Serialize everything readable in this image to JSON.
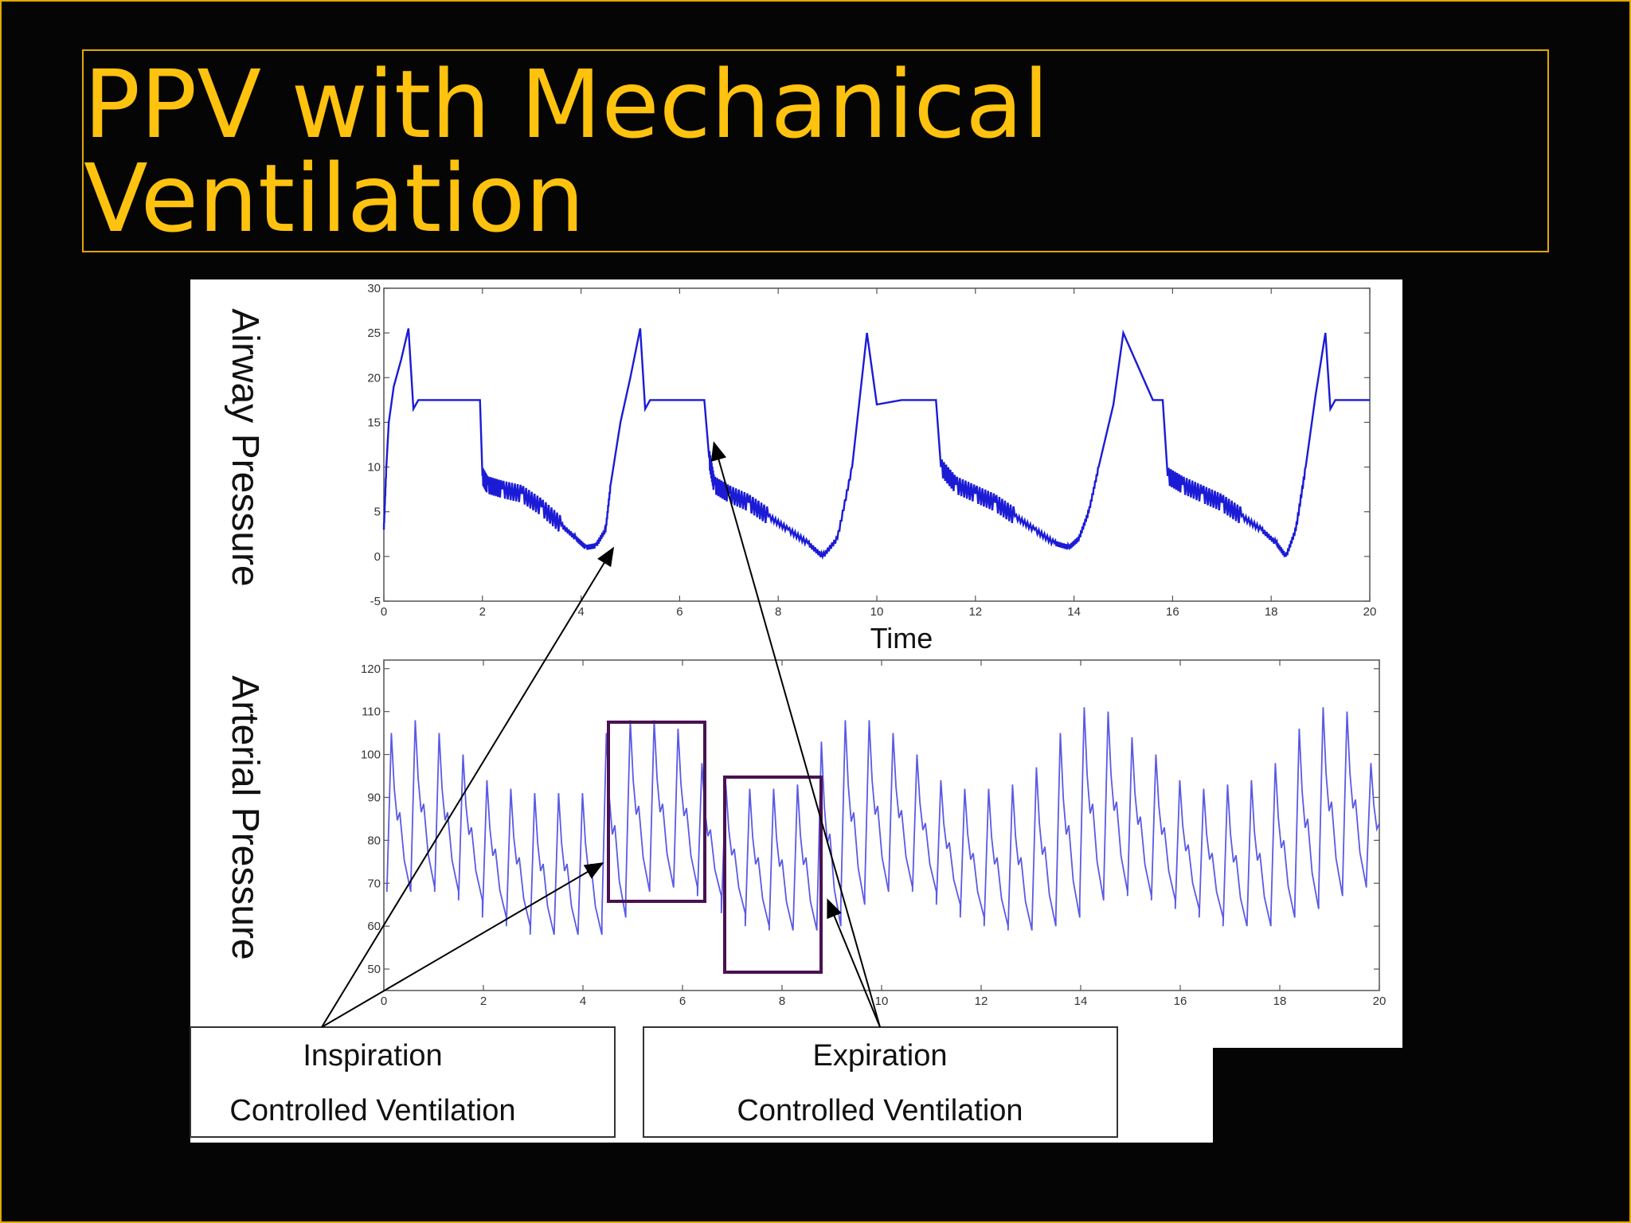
{
  "slide": {
    "title": "PPV with Mechanical Ventilation"
  },
  "colors": {
    "background": "#050505",
    "accent": "#ffc20e",
    "airway_trace": "#1b1bd6",
    "arterial_trace": "#5a5ae6",
    "highlight_box": "#4a1252"
  },
  "chart_data": [
    {
      "type": "line",
      "title": "",
      "ylabel": "Airway Pressure",
      "xlabel": "Time",
      "xlim": [
        0,
        20
      ],
      "ylim": [
        -5,
        30
      ],
      "xticks": [
        0,
        2,
        4,
        6,
        8,
        10,
        12,
        14,
        16,
        18,
        20
      ],
      "yticks": [
        -5,
        0,
        5,
        10,
        15,
        20,
        25,
        30
      ],
      "grid": false,
      "breath_period": 4.6,
      "series": [
        {
          "x": [
            0,
            0.05,
            0.1,
            0.15,
            0.2,
            0.35,
            0.5,
            0.6,
            0.7,
            0.9,
            1.3,
            1.7,
            1.95,
            2.0,
            2.1,
            2.4,
            2.8,
            3.2,
            3.6,
            3.9,
            4.1,
            4.3,
            4.5,
            4.6,
            4.8,
            5.0,
            5.2,
            5.3,
            5.4,
            5.6,
            6.0,
            6.5,
            6.6,
            6.7,
            7.0,
            7.4,
            7.8,
            8.2,
            8.6,
            8.9,
            9.2,
            9.5,
            9.6,
            9.7,
            9.8,
            10.0,
            10.5,
            11.0,
            11.2,
            11.3,
            11.6,
            12.0,
            12.4,
            12.8,
            13.2,
            13.6,
            13.9,
            14.1,
            14.3,
            14.5,
            14.8,
            15.0,
            15.6,
            15.8,
            15.9,
            16.2,
            16.6,
            17.0,
            17.4,
            17.8,
            18.1,
            18.3,
            18.5,
            18.7,
            18.9,
            19.1,
            19.2,
            19.3,
            19.5,
            20.0
          ],
          "y": [
            3,
            10,
            15,
            17,
            19,
            22,
            25.5,
            16.5,
            17.5,
            17.5,
            17.5,
            17.5,
            17.5,
            9,
            8,
            7.5,
            7,
            5.5,
            3.5,
            2,
            1,
            1.2,
            3,
            8,
            15,
            20,
            25.5,
            16.5,
            17.5,
            17.5,
            17.5,
            17.5,
            11,
            8,
            7,
            6,
            4.5,
            3,
            1.5,
            0,
            2,
            10,
            15,
            20,
            25,
            17,
            17.5,
            17.5,
            17.5,
            10,
            8,
            7,
            6,
            4.5,
            3,
            1.5,
            1,
            2,
            5,
            10,
            17,
            25,
            17.5,
            17.5,
            9,
            8,
            7,
            6,
            4.5,
            3,
            1.5,
            0,
            3,
            10,
            18,
            25,
            16.5,
            17.5,
            17.5,
            17.5
          ]
        }
      ]
    },
    {
      "type": "line",
      "title": "",
      "ylabel": "Arterial Pressure",
      "xlabel": "",
      "xlim": [
        0,
        20
      ],
      "ylim": [
        45,
        122
      ],
      "xticks": [
        0,
        2,
        4,
        6,
        8,
        10,
        12,
        14,
        16,
        18,
        20
      ],
      "yticks": [
        50,
        60,
        70,
        80,
        90,
        100,
        110,
        120
      ],
      "grid": false,
      "beat_period": 0.48,
      "series": [
        {
          "x_peaks": [
            0.15,
            0.63,
            1.11,
            1.59,
            2.07,
            2.55,
            3.03,
            3.51,
            3.99,
            4.47,
            4.95,
            5.43,
            5.91,
            6.39,
            6.87,
            7.35,
            7.83,
            8.31,
            8.79,
            9.27,
            9.75,
            10.23,
            10.71,
            11.19,
            11.67,
            12.15,
            12.63,
            13.11,
            13.59,
            14.07,
            14.55,
            15.03,
            15.51,
            15.99,
            16.47,
            16.95,
            17.43,
            17.91,
            18.39,
            18.87,
            19.35,
            19.83
          ],
          "peaks": [
            105,
            108,
            105,
            100,
            94,
            92,
            91,
            91,
            91,
            105,
            108,
            108,
            106,
            98,
            93,
            92,
            92,
            93,
            103,
            108,
            108,
            105,
            100,
            94,
            92,
            92,
            93,
            97,
            105,
            111,
            110,
            104,
            100,
            94,
            92,
            93,
            94,
            98,
            106,
            111,
            110,
            98
          ],
          "troughs": [
            68,
            69,
            68,
            66,
            62,
            60,
            58,
            58,
            58,
            62,
            68,
            69,
            69,
            67,
            63,
            60,
            59,
            59,
            60,
            65,
            68,
            69,
            68,
            65,
            62,
            60,
            59,
            60,
            62,
            66,
            68,
            67,
            66,
            64,
            62,
            60,
            60,
            62,
            64,
            67,
            69,
            70
          ]
        }
      ]
    }
  ],
  "annotations": {
    "inspiration_title": "Inspiration",
    "inspiration_sub": "Controlled Ventilation",
    "expiration_title": "Expiration",
    "expiration_sub": "Controlled Ventilation"
  }
}
